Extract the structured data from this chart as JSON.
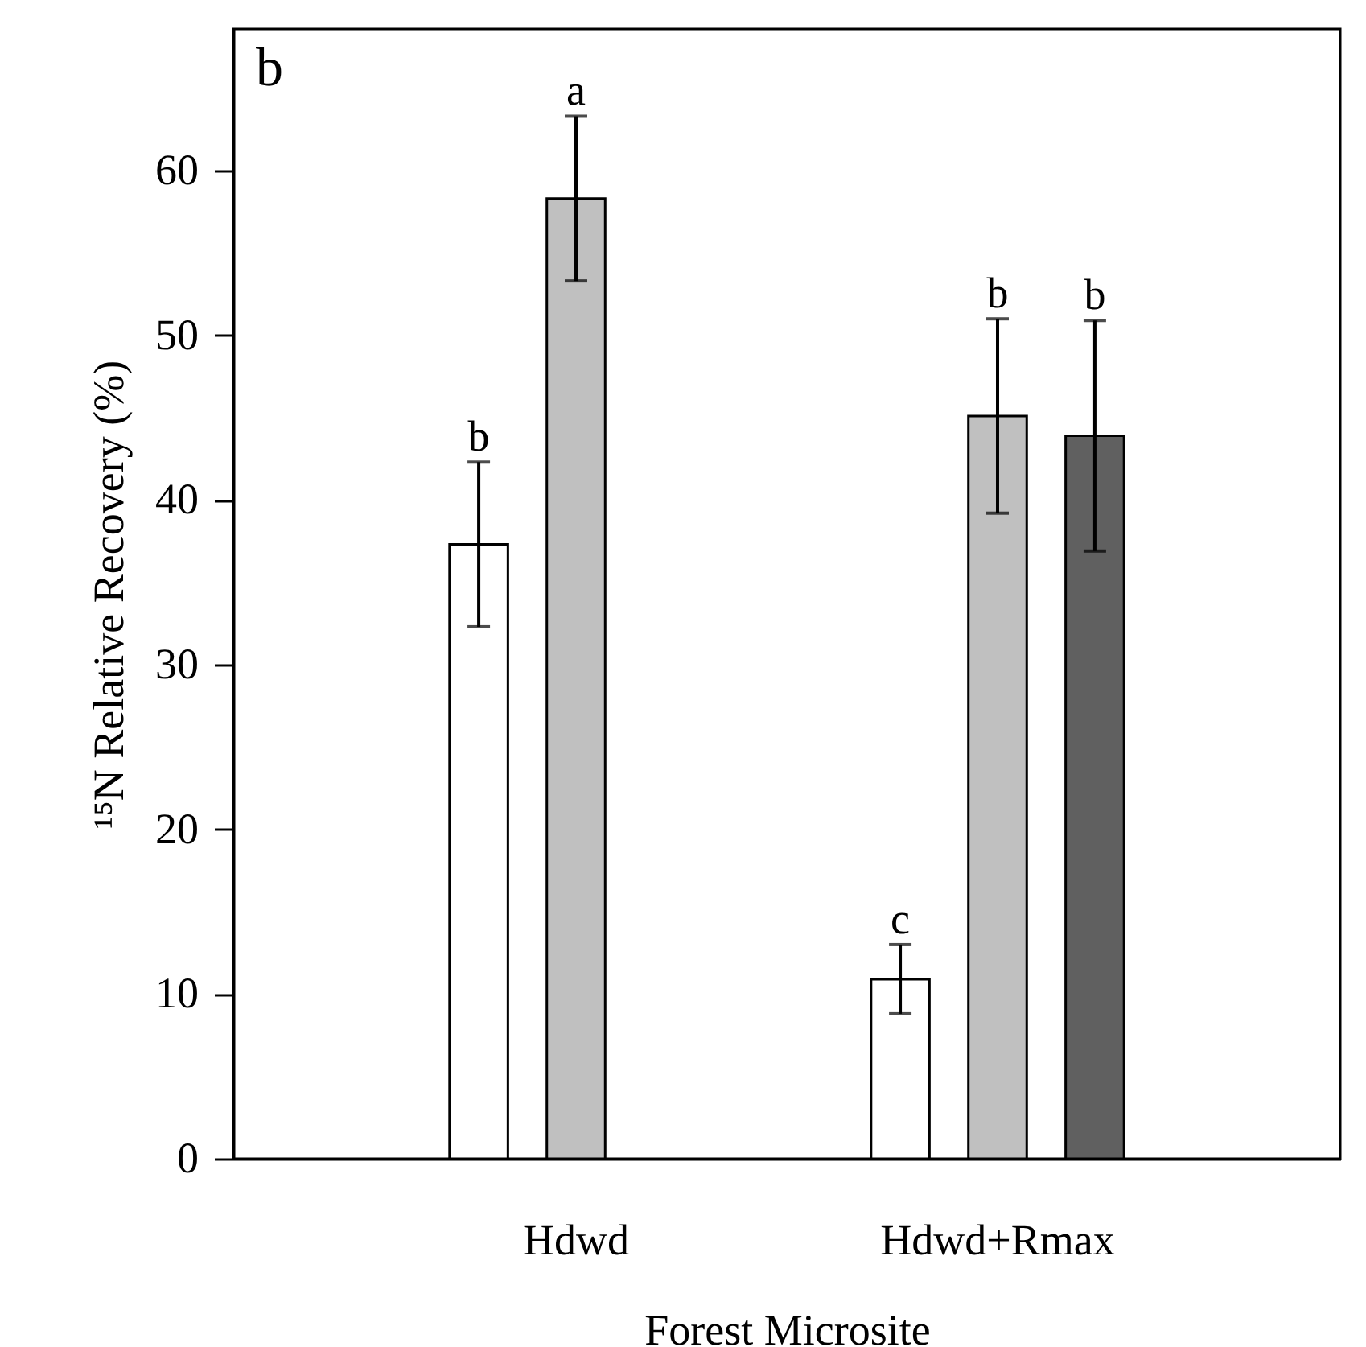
{
  "chart_data": {
    "type": "bar",
    "xlabel": "Forest Microsite",
    "ylabel": "¹⁵N Relative Recovery (%)",
    "categories": [
      "Hdwd",
      "Hdwd+Rmax"
    ],
    "series": [
      {
        "color": "#ffffff",
        "values": [
          37.3,
          10.9
        ],
        "errors": [
          5.0,
          2.1
        ]
      },
      {
        "color": "#c0c0c0",
        "values": [
          58.3,
          45.1
        ],
        "errors": [
          5.0,
          5.9
        ]
      },
      {
        "color": "#606060",
        "values": [
          null,
          43.9
        ],
        "errors": [
          null,
          7.0
        ]
      }
    ],
    "ylim": [
      0,
      68.6
    ],
    "yticks": [
      0,
      10,
      20,
      30,
      40,
      50,
      60
    ],
    "grid": false,
    "annotations": [
      "b",
      "b",
      "a",
      "c",
      "b",
      "b"
    ]
  }
}
